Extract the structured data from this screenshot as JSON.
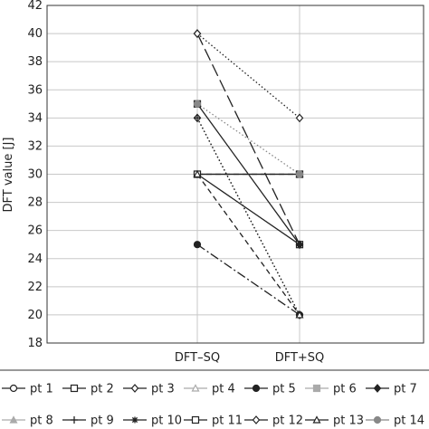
{
  "chart_data": {
    "type": "line",
    "title": "",
    "xlabel": "",
    "ylabel": "DFT value [J]",
    "categories": [
      "DFT–SQ",
      "DFT+SQ"
    ],
    "ylim": [
      18,
      42
    ],
    "yticks": [
      18,
      20,
      22,
      24,
      26,
      28,
      30,
      32,
      34,
      36,
      38,
      40,
      42
    ],
    "grid": true,
    "legend_position": "bottom",
    "series": [
      {
        "name": "pt 1",
        "values": [
          30,
          25
        ],
        "marker": "circle-open",
        "line": "solid",
        "color": "#222222"
      },
      {
        "name": "pt 2",
        "values": [
          35,
          25
        ],
        "marker": "square-open",
        "line": "solid",
        "color": "#222222"
      },
      {
        "name": "pt 3",
        "values": [
          34,
          20
        ],
        "marker": "diamond-open",
        "line": "dotted",
        "color": "#222222"
      },
      {
        "name": "pt 4",
        "values": [
          30,
          30
        ],
        "marker": "triangle-open",
        "line": "solid",
        "color": "#aaaaaa"
      },
      {
        "name": "pt 5",
        "values": [
          25,
          20
        ],
        "marker": "circle-filled",
        "line": "dashdot",
        "color": "#222222"
      },
      {
        "name": "pt 6",
        "values": [
          30,
          30
        ],
        "marker": "square-filled",
        "line": "solid",
        "color": "#aaaaaa"
      },
      {
        "name": "pt 7",
        "values": [
          40,
          25
        ],
        "marker": "diamond-filled",
        "line": "longdash",
        "color": "#222222"
      },
      {
        "name": "pt 8",
        "values": [
          30,
          30
        ],
        "marker": "triangle-filled",
        "line": "solid",
        "color": "#aaaaaa"
      },
      {
        "name": "pt 9",
        "values": [
          34,
          20
        ],
        "marker": "plus",
        "line": "dotted",
        "color": "#222222"
      },
      {
        "name": "pt 10",
        "values": [
          30,
          30
        ],
        "marker": "asterisk",
        "line": "solid",
        "color": "#222222"
      },
      {
        "name": "pt 11",
        "values": [
          30,
          30
        ],
        "marker": "square-open",
        "line": "dashed",
        "color": "#222222"
      },
      {
        "name": "pt 12",
        "values": [
          40,
          34
        ],
        "marker": "diamond-open",
        "line": "dotted",
        "color": "#222222"
      },
      {
        "name": "pt 13",
        "values": [
          30,
          20
        ],
        "marker": "triangle-open",
        "line": "dashed",
        "color": "#222222"
      },
      {
        "name": "pt 14",
        "values": [
          35,
          30
        ],
        "marker": "circle-filled",
        "line": "dotted",
        "color": "#888888"
      }
    ]
  }
}
